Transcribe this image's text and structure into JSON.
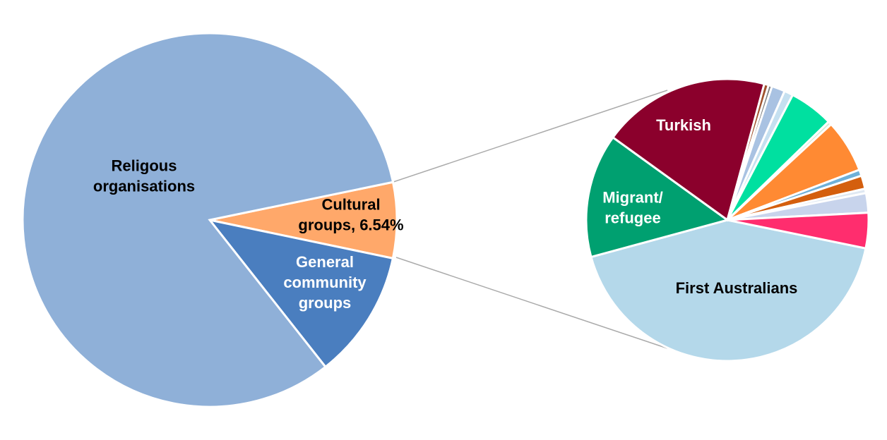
{
  "chart_data": [
    {
      "type": "pie",
      "categories": [
        "Cultural\ngroups, 6.54%",
        "General\ncommunity\ngroups",
        "Religous\norganisations"
      ],
      "values": [
        6.54,
        11.1,
        82.36
      ],
      "colors": [
        "#ffa86a",
        "#4a7ebf",
        "#8fb0d8"
      ]
    },
    {
      "type": "pie",
      "categories": [
        "First Australians",
        "Migrant/\nrefugee",
        "Turkish",
        null,
        null,
        null,
        null,
        null,
        null,
        null,
        null,
        null,
        null,
        null,
        null
      ],
      "values": [
        42,
        14,
        19,
        0.5,
        0.4,
        1.5,
        1.0,
        5,
        0.4,
        6,
        0.7,
        1.5,
        0.5,
        2.2,
        4
      ],
      "colors": [
        "#b4d8ea",
        "#00a070",
        "#8b002c",
        "#a0522d",
        "#7f7f7f",
        "#a9c2e2",
        "#c5e0f0",
        "#00e0a0",
        "#d9ead3",
        "#ff8a33",
        "#6fb0d8",
        "#d45f0e",
        "#dfe8f2",
        "#c8d4ec",
        "#ff2d6e"
      ]
    }
  ]
}
